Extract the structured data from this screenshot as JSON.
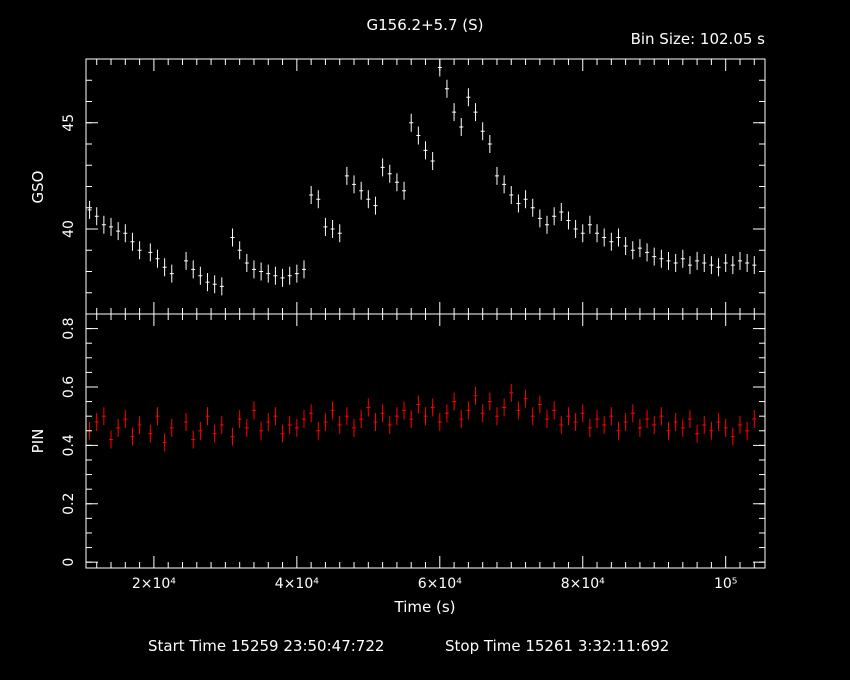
{
  "title": "G156.2+5.7 (S)",
  "bin_size_text": "Bin Size: 102.05 s",
  "footer": {
    "start_time_text": "Start Time 15259 23:50:47:722",
    "stop_time_text": "Stop Time 15261  3:32:11:692"
  },
  "colors": {
    "background": "#000000",
    "gso": "#ffffff",
    "pin": "#ff0000",
    "axes": "#ffffff"
  },
  "chart_data": [
    {
      "type": "scatter",
      "panel": "top",
      "ylabel": "GSO",
      "xlabel": "",
      "xlim": [
        10500,
        105500
      ],
      "ylim": [
        36.0,
        48.0
      ],
      "yticks": [
        "40",
        "45"
      ],
      "ytick_values": [
        40,
        45
      ],
      "series": [
        {
          "color": "#ffffff",
          "x": [
            11000,
            12000,
            13000,
            14000,
            15000,
            16000,
            17000,
            18000,
            19500,
            20500,
            21500,
            22500,
            24500,
            25500,
            26500,
            27500,
            28500,
            29500,
            31000,
            32000,
            33000,
            34000,
            35000,
            36000,
            37000,
            38000,
            39000,
            40000,
            41000,
            42000,
            43000,
            44000,
            45000,
            46000,
            47000,
            48000,
            49000,
            50000,
            51000,
            52000,
            53000,
            54000,
            55000,
            56000,
            57000,
            58000,
            59000,
            60000,
            61000,
            62000,
            63000,
            64000,
            65000,
            66000,
            67000,
            68000,
            69000,
            70000,
            71000,
            72000,
            73000,
            74000,
            75000,
            76000,
            77000,
            78000,
            79000,
            80000,
            81000,
            82000,
            83000,
            84000,
            85000,
            86000,
            87000,
            88000,
            89000,
            90000,
            91000,
            92000,
            93000,
            94000,
            95000,
            96000,
            97000,
            98000,
            99000,
            100000,
            101000,
            102000,
            103000,
            104000
          ],
          "y": [
            40.9,
            40.6,
            40.2,
            40.1,
            39.9,
            39.8,
            39.4,
            39.0,
            38.9,
            38.6,
            38.2,
            37.9,
            38.5,
            38.1,
            37.8,
            37.5,
            37.4,
            37.3,
            39.6,
            39.0,
            38.4,
            38.1,
            38.0,
            37.9,
            37.8,
            37.7,
            37.8,
            37.9,
            38.1,
            41.6,
            41.4,
            40.1,
            40.0,
            39.8,
            42.5,
            42.1,
            41.8,
            41.4,
            41.1,
            42.9,
            42.6,
            42.2,
            41.8,
            45.0,
            44.4,
            43.7,
            43.2,
            47.6,
            46.6,
            45.5,
            44.8,
            46.2,
            45.5,
            44.6,
            44.0,
            42.5,
            42.1,
            41.6,
            41.2,
            41.4,
            41.0,
            40.5,
            40.2,
            40.6,
            40.8,
            40.4,
            40.0,
            39.8,
            40.2,
            39.8,
            39.6,
            39.4,
            39.6,
            39.2,
            39.0,
            39.1,
            38.9,
            38.7,
            38.6,
            38.5,
            38.4,
            38.6,
            38.3,
            38.5,
            38.4,
            38.3,
            38.2,
            38.4,
            38.3,
            38.5,
            38.4,
            38.3
          ]
        }
      ]
    },
    {
      "type": "scatter",
      "panel": "bottom",
      "ylabel": "PIN",
      "xlabel": "Time (s)",
      "xlim": [
        10500,
        105500
      ],
      "ylim": [
        -0.02,
        0.85
      ],
      "xticks": [
        "2×10⁴",
        "4×10⁴",
        "6×10⁴",
        "8×10⁴",
        "10⁵"
      ],
      "xtick_values": [
        20000,
        40000,
        60000,
        80000,
        100000
      ],
      "yticks": [
        "0",
        "0.2",
        "0.4",
        "0.6",
        "0.8"
      ],
      "ytick_values": [
        0,
        0.2,
        0.4,
        0.6,
        0.8
      ],
      "series": [
        {
          "color": "#ff0000",
          "x": [
            11000,
            12000,
            13000,
            14000,
            15000,
            16000,
            17000,
            18000,
            19500,
            20500,
            21500,
            22500,
            24500,
            25500,
            26500,
            27500,
            28500,
            29500,
            31000,
            32000,
            33000,
            34000,
            35000,
            36000,
            37000,
            38000,
            39000,
            40000,
            41000,
            42000,
            43000,
            44000,
            45000,
            46000,
            47000,
            48000,
            49000,
            50000,
            51000,
            52000,
            53000,
            54000,
            55000,
            56000,
            57000,
            58000,
            59000,
            60000,
            61000,
            62000,
            63000,
            64000,
            65000,
            66000,
            67000,
            68000,
            69000,
            70000,
            71000,
            72000,
            73000,
            74000,
            75000,
            76000,
            77000,
            78000,
            79000,
            80000,
            81000,
            82000,
            83000,
            84000,
            85000,
            86000,
            87000,
            88000,
            89000,
            90000,
            91000,
            92000,
            93000,
            94000,
            95000,
            96000,
            97000,
            98000,
            99000,
            100000,
            101000,
            102000,
            103000,
            104000
          ],
          "y": [
            0.45,
            0.48,
            0.5,
            0.42,
            0.46,
            0.49,
            0.43,
            0.47,
            0.44,
            0.5,
            0.41,
            0.46,
            0.48,
            0.42,
            0.45,
            0.5,
            0.44,
            0.47,
            0.43,
            0.49,
            0.46,
            0.52,
            0.45,
            0.48,
            0.5,
            0.44,
            0.47,
            0.46,
            0.49,
            0.51,
            0.45,
            0.48,
            0.52,
            0.47,
            0.5,
            0.46,
            0.49,
            0.53,
            0.48,
            0.51,
            0.47,
            0.5,
            0.52,
            0.49,
            0.54,
            0.5,
            0.53,
            0.48,
            0.51,
            0.55,
            0.49,
            0.52,
            0.57,
            0.51,
            0.55,
            0.5,
            0.53,
            0.58,
            0.52,
            0.56,
            0.5,
            0.54,
            0.49,
            0.52,
            0.47,
            0.5,
            0.48,
            0.51,
            0.46,
            0.49,
            0.47,
            0.5,
            0.45,
            0.48,
            0.51,
            0.46,
            0.49,
            0.47,
            0.5,
            0.45,
            0.48,
            0.46,
            0.49,
            0.44,
            0.47,
            0.45,
            0.48,
            0.46,
            0.43,
            0.47,
            0.45,
            0.49
          ]
        }
      ]
    }
  ]
}
